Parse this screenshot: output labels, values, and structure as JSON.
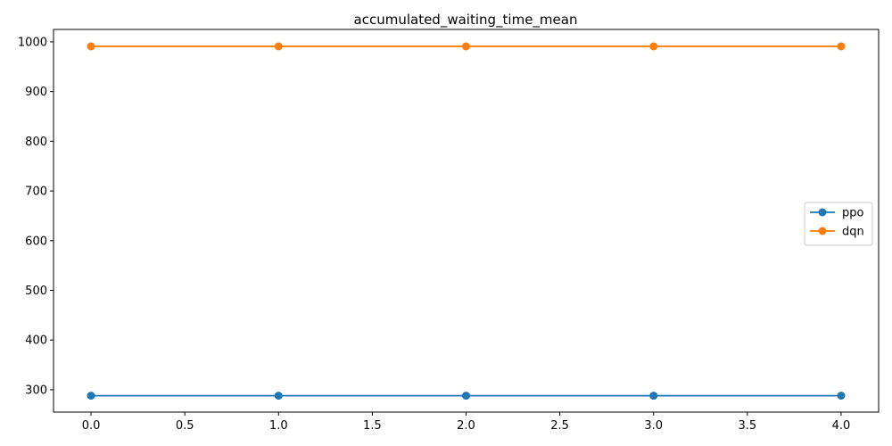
{
  "chart_data": {
    "type": "line",
    "title": "accumulated_waiting_time_mean",
    "xlabel": "",
    "ylabel": "",
    "x": [
      0,
      1,
      2,
      3,
      4
    ],
    "xlim": [
      -0.2,
      4.2
    ],
    "ylim": [
      255,
      1025
    ],
    "x_ticks": [
      "0.0",
      "0.5",
      "1.0",
      "1.5",
      "2.0",
      "2.5",
      "3.0",
      "3.5",
      "4.0"
    ],
    "y_ticks": [
      "300",
      "400",
      "500",
      "600",
      "700",
      "800",
      "900",
      "1000"
    ],
    "grid": false,
    "legend_position": "center-right",
    "series": [
      {
        "name": "ppo",
        "color": "#1f77b4",
        "marker": "circle",
        "values": [
          288,
          288,
          288,
          288,
          288
        ]
      },
      {
        "name": "dqn",
        "color": "#ff7f0e",
        "marker": "circle",
        "values": [
          991,
          991,
          991,
          991,
          991
        ]
      }
    ]
  }
}
